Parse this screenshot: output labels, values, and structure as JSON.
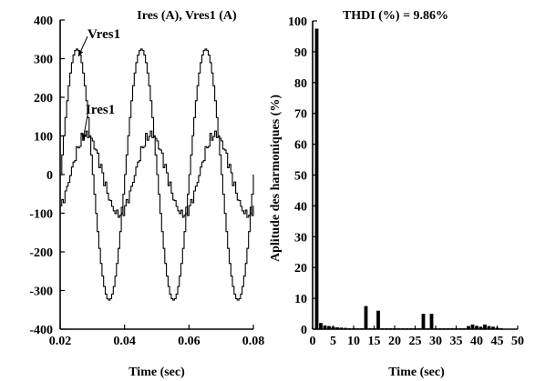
{
  "chart_data": [
    {
      "type": "line",
      "title": "Ires (A), Vres1 (A)",
      "xlabel": "Time (sec)",
      "ylabel": "",
      "xlim": [
        0.02,
        0.08
      ],
      "ylim": [
        -400,
        400
      ],
      "x_ticks": [
        "0.02",
        "0.04",
        "0.06",
        "0.08"
      ],
      "y_ticks": [
        "400",
        "300",
        "200",
        "100",
        "0",
        "-100",
        "-200",
        "-300",
        "-400"
      ],
      "series": [
        {
          "name": "Vres1",
          "amplitude": 325,
          "frequency_hz": 50,
          "waveform": "stepped sine",
          "x": [
            0.02,
            0.025,
            0.03,
            0.035,
            0.04,
            0.045,
            0.05,
            0.055,
            0.06,
            0.065,
            0.07,
            0.075,
            0.08
          ],
          "values": [
            0,
            325,
            0,
            -325,
            0,
            325,
            0,
            -325,
            0,
            325,
            0,
            -325,
            0
          ]
        },
        {
          "name": "Ires1",
          "amplitude": 112,
          "frequency_hz": 50,
          "waveform": "stepped sine, distorted",
          "x": [
            0.02,
            0.025,
            0.03,
            0.035,
            0.04,
            0.045,
            0.05,
            0.055,
            0.06,
            0.065,
            0.07,
            0.075,
            0.08
          ],
          "values": [
            -70,
            40,
            110,
            0,
            -100,
            25,
            110,
            0,
            -100,
            25,
            110,
            0,
            -90
          ]
        }
      ],
      "annotations": [
        "Vres1",
        "Ires1"
      ]
    },
    {
      "type": "bar",
      "title": "THDI (%) = 9.86%",
      "xlabel": "Time (sec)",
      "ylabel": "Aplitude des harmoniques (%)",
      "xlim": [
        0,
        50
      ],
      "ylim": [
        0,
        100
      ],
      "x_ticks": [
        "0",
        "5",
        "10",
        "15",
        "20",
        "25",
        "30",
        "35",
        "40",
        "45",
        "50"
      ],
      "y_ticks": [
        "100",
        "90",
        "80",
        "70",
        "60",
        "50",
        "40",
        "30",
        "20",
        "10",
        "0"
      ],
      "harmonics": [
        1,
        2,
        3,
        4,
        5,
        6,
        7,
        8,
        9,
        10,
        11,
        12,
        13,
        14,
        15,
        16,
        17,
        18,
        19,
        20,
        21,
        22,
        23,
        24,
        25,
        26,
        27,
        28,
        29,
        30,
        31,
        32,
        33,
        34,
        35,
        36,
        37,
        38,
        39,
        40,
        41,
        42,
        43,
        44,
        45,
        46
      ],
      "values": [
        97.5,
        2,
        1.2,
        1,
        0.8,
        0.6,
        0.5,
        0.4,
        0.3,
        0.3,
        0.3,
        0.3,
        7.5,
        0.3,
        0.3,
        6,
        0.3,
        0.3,
        0.3,
        0.3,
        0.3,
        0.3,
        0.3,
        0.3,
        0.3,
        0.3,
        5,
        0.3,
        5,
        0.3,
        0.3,
        0.3,
        0.3,
        0.3,
        0.3,
        0.3,
        0.3,
        1,
        1.5,
        1,
        0.8,
        1.5,
        1,
        0.8,
        0.5,
        0.3
      ]
    }
  ]
}
